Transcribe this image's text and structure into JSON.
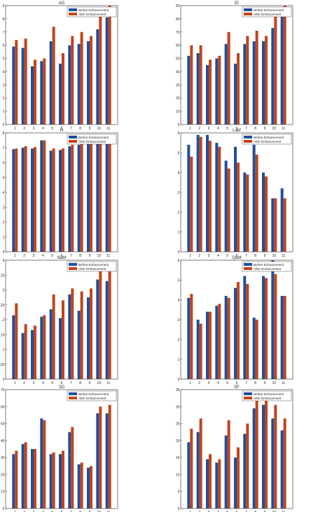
{
  "colors": {
    "before": "#1f4e9c",
    "after": "#c0451c"
  },
  "legend_labels": [
    "Before Enhancement",
    "After Enhancement"
  ],
  "chart_data": [
    {
      "type": "bar",
      "title": "AG",
      "xlabel": "",
      "ylabel": "",
      "categories": [
        "1",
        "2",
        "3",
        "4",
        "5",
        "6",
        "7",
        "8",
        "9",
        "10",
        "11"
      ],
      "ylim": [
        0,
        9
      ],
      "yticks": [
        0,
        1,
        2,
        3,
        4,
        5,
        6,
        7,
        8,
        9
      ],
      "legend": "top-right",
      "grid": false,
      "series": [
        {
          "name": "Before Enhancement",
          "values": [
            5.9,
            5.8,
            4.4,
            4.8,
            6.3,
            4.6,
            6.0,
            6.1,
            6.3,
            7.2,
            8.1
          ]
        },
        {
          "name": "After Enhancement",
          "values": [
            6.4,
            6.5,
            4.9,
            5.0,
            7.4,
            5.4,
            6.7,
            7.0,
            6.7,
            8.4,
            9.0
          ]
        }
      ]
    },
    {
      "type": "bar",
      "title": "EI",
      "xlabel": "",
      "ylabel": "",
      "categories": [
        "1",
        "2",
        "3",
        "4",
        "5",
        "6",
        "7",
        "8",
        "9",
        "10",
        "11"
      ],
      "ylim": [
        0,
        90
      ],
      "yticks": [
        0,
        10,
        20,
        30,
        40,
        50,
        60,
        70,
        80,
        90
      ],
      "legend": "top-right",
      "grid": false,
      "series": [
        {
          "name": "Before Enhancement",
          "values": [
            52,
            54,
            45,
            50,
            61,
            46,
            61,
            63,
            63,
            73,
            82
          ]
        },
        {
          "name": "After Enhancement",
          "values": [
            60,
            60,
            49,
            52,
            70,
            54,
            67,
            71,
            67,
            84,
            90
          ]
        }
      ]
    },
    {
      "type": "bar",
      "title": "H",
      "xlabel": "",
      "ylabel": "",
      "categories": [
        "1",
        "2",
        "3",
        "4",
        "5",
        "6",
        "7",
        "8",
        "9",
        "10",
        "11"
      ],
      "ylim": [
        0,
        8
      ],
      "yticks": [
        0,
        1,
        2,
        3,
        4,
        5,
        6,
        7,
        8
      ],
      "legend": "top-right",
      "grid": false,
      "series": [
        {
          "name": "Before Enhancement",
          "values": [
            6.9,
            7.0,
            6.95,
            7.5,
            6.8,
            6.85,
            7.1,
            7.2,
            7.25,
            7.5,
            7.6
          ]
        },
        {
          "name": "After Enhancement",
          "values": [
            6.95,
            7.1,
            7.05,
            7.5,
            6.95,
            6.95,
            7.2,
            7.3,
            7.25,
            7.6,
            7.65
          ]
        }
      ]
    },
    {
      "type": "bar",
      "title": "Labf",
      "xlabel": "",
      "ylabel": "",
      "categories": [
        "1",
        "2",
        "3",
        "4",
        "5",
        "6",
        "7",
        "8",
        "9",
        "10",
        "11"
      ],
      "ylim": [
        0,
        0.6
      ],
      "yticks": [
        0,
        0.1,
        0.2,
        0.3,
        0.4,
        0.5,
        0.6
      ],
      "legend": "top-right",
      "grid": false,
      "series": [
        {
          "name": "Before Enhancement",
          "values": [
            0.54,
            0.59,
            0.59,
            0.55,
            0.46,
            0.53,
            0.4,
            0.54,
            0.4,
            0.27,
            0.32
          ]
        },
        {
          "name": "After Enhancement",
          "values": [
            0.48,
            0.58,
            0.56,
            0.53,
            0.42,
            0.45,
            0.39,
            0.49,
            0.38,
            0.27,
            0.27
          ]
        }
      ]
    },
    {
      "type": "bar",
      "title": "Nabf",
      "xlabel": "",
      "ylabel": "",
      "categories": [
        "1",
        "2",
        "3",
        "4",
        "5",
        "6",
        "7",
        "8",
        "9",
        "10",
        "11"
      ],
      "ylim": [
        0,
        0.4
      ],
      "yticks": [
        0,
        0.05,
        0.1,
        0.15,
        0.2,
        0.25,
        0.3,
        0.35,
        0.4
      ],
      "legend": "top-right",
      "grid": false,
      "series": [
        {
          "name": "Before Enhancement",
          "values": [
            0.215,
            0.155,
            0.165,
            0.21,
            0.235,
            0.205,
            0.285,
            0.23,
            0.275,
            0.335,
            0.33
          ]
        },
        {
          "name": "After Enhancement",
          "values": [
            0.255,
            0.185,
            0.18,
            0.215,
            0.285,
            0.265,
            0.305,
            0.295,
            0.305,
            0.375,
            0.385
          ]
        }
      ]
    },
    {
      "type": "bar",
      "title": "Qabf",
      "xlabel": "",
      "ylabel": "",
      "categories": [
        "1",
        "2",
        "3",
        "4",
        "5",
        "6",
        "7",
        "8",
        "9",
        "10",
        "11"
      ],
      "ylim": [
        0,
        0.6
      ],
      "yticks": [
        0,
        0.1,
        0.2,
        0.3,
        0.4,
        0.5,
        0.6
      ],
      "legend": "top-right",
      "grid": false,
      "series": [
        {
          "name": "Before Enhancement",
          "values": [
            0.41,
            0.3,
            0.34,
            0.37,
            0.42,
            0.46,
            0.52,
            0.31,
            0.52,
            0.6,
            0.42
          ]
        },
        {
          "name": "After Enhancement",
          "values": [
            0.43,
            0.28,
            0.34,
            0.38,
            0.41,
            0.49,
            0.48,
            0.3,
            0.51,
            0.53,
            0.42
          ]
        }
      ]
    },
    {
      "type": "bar",
      "title": "SD",
      "xlabel": "",
      "ylabel": "",
      "categories": [
        "1",
        "2",
        "3",
        "4",
        "5",
        "6",
        "7",
        "8",
        "9",
        "10",
        "11"
      ],
      "ylim": [
        0,
        70
      ],
      "yticks": [
        0,
        10,
        20,
        30,
        40,
        50,
        60,
        70
      ],
      "legend": "top-right",
      "grid": false,
      "series": [
        {
          "name": "Before Enhancement",
          "values": [
            32,
            38,
            35,
            53,
            32,
            32,
            45,
            26,
            24,
            56,
            56
          ]
        },
        {
          "name": "After Enhancement",
          "values": [
            34,
            39,
            35,
            52,
            33,
            34,
            48,
            27,
            25,
            60,
            61
          ]
        }
      ]
    },
    {
      "type": "bar",
      "title": "SF",
      "xlabel": "",
      "ylabel": "",
      "categories": [
        "1",
        "2",
        "3",
        "4",
        "5",
        "6",
        "7",
        "8",
        "9",
        "10",
        "11"
      ],
      "ylim": [
        0,
        35
      ],
      "yticks": [
        0,
        5,
        10,
        15,
        20,
        25,
        30,
        35
      ],
      "legend": "top-right",
      "grid": false,
      "series": [
        {
          "name": "Before Enhancement",
          "values": [
            19.5,
            22.5,
            14.5,
            13.5,
            21.5,
            15.0,
            22.0,
            29.5,
            30.5,
            26.5,
            23.0
          ]
        },
        {
          "name": "After Enhancement",
          "values": [
            23.5,
            26.5,
            16.0,
            14.5,
            26.0,
            18.0,
            25.0,
            34.0,
            34.0,
            30.5,
            26.5
          ]
        }
      ]
    }
  ]
}
